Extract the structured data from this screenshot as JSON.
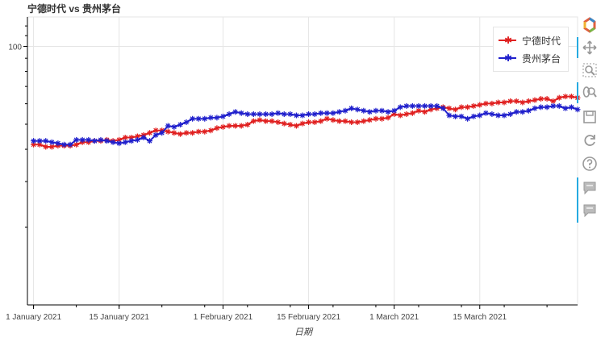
{
  "chart_data": {
    "type": "line",
    "title": "宁德时代 vs 贵州茅台",
    "xlabel": "日期",
    "ylabel": "",
    "y_scale": "log",
    "ylim": [
      10,
      130
    ],
    "xlim": [
      "2020-12-31",
      "2021-03-31"
    ],
    "grid": true,
    "legend_position": "top-right",
    "y_ticks": [
      100
    ],
    "x_ticks": [
      "1 January 2021",
      "15 January 2021",
      "1 February 2021",
      "15 February 2021",
      "1 March 2021",
      "15 March 2021"
    ],
    "x": [
      "2021-01-01",
      "2021-01-02",
      "2021-01-03",
      "2021-01-04",
      "2021-01-05",
      "2021-01-06",
      "2021-01-07",
      "2021-01-08",
      "2021-01-09",
      "2021-01-10",
      "2021-01-11",
      "2021-01-12",
      "2021-01-13",
      "2021-01-14",
      "2021-01-15",
      "2021-01-16",
      "2021-01-17",
      "2021-01-18",
      "2021-01-19",
      "2021-01-20",
      "2021-01-21",
      "2021-01-22",
      "2021-01-23",
      "2021-01-24",
      "2021-01-25",
      "2021-01-26",
      "2021-01-27",
      "2021-01-28",
      "2021-01-29",
      "2021-01-30",
      "2021-01-31",
      "2021-02-01",
      "2021-02-02",
      "2021-02-03",
      "2021-02-04",
      "2021-02-05",
      "2021-02-06",
      "2021-02-07",
      "2021-02-08",
      "2021-02-09",
      "2021-02-10",
      "2021-02-11",
      "2021-02-12",
      "2021-02-13",
      "2021-02-14",
      "2021-02-15",
      "2021-02-16",
      "2021-02-17",
      "2021-02-18",
      "2021-02-19",
      "2021-02-20",
      "2021-02-21",
      "2021-02-22",
      "2021-02-23",
      "2021-02-24",
      "2021-02-25",
      "2021-02-26",
      "2021-02-27",
      "2021-02-28",
      "2021-03-01",
      "2021-03-02",
      "2021-03-03",
      "2021-03-04",
      "2021-03-05",
      "2021-03-06",
      "2021-03-07",
      "2021-03-08",
      "2021-03-09",
      "2021-03-10",
      "2021-03-11",
      "2021-03-12",
      "2021-03-13",
      "2021-03-14",
      "2021-03-15",
      "2021-03-16",
      "2021-03-17",
      "2021-03-18",
      "2021-03-19",
      "2021-03-20",
      "2021-03-21",
      "2021-03-22",
      "2021-03-23",
      "2021-03-24",
      "2021-03-25",
      "2021-03-26",
      "2021-03-27",
      "2021-03-28",
      "2021-03-29",
      "2021-03-30",
      "2021-03-31"
    ],
    "series": [
      {
        "name": "宁德时代",
        "color": "#e02020",
        "values": [
          41.7,
          41.7,
          40.9,
          40.9,
          41.3,
          41.3,
          41.3,
          41.7,
          42.6,
          42.6,
          43.1,
          43.1,
          43.5,
          43.1,
          43.5,
          44.4,
          44.4,
          44.9,
          45.4,
          46.3,
          47.3,
          47.3,
          46.8,
          46.3,
          45.8,
          46.3,
          46.3,
          46.8,
          46.8,
          47.3,
          48.3,
          48.8,
          49.3,
          49.3,
          49.3,
          49.8,
          51.4,
          51.9,
          51.4,
          51.4,
          50.9,
          50.3,
          49.8,
          49.3,
          50.3,
          50.9,
          50.9,
          51.4,
          52.5,
          51.9,
          51.4,
          51.4,
          50.9,
          50.9,
          51.4,
          51.9,
          52.5,
          52.5,
          53.0,
          54.7,
          54.1,
          54.7,
          55.2,
          56.4,
          55.8,
          57.0,
          57.6,
          58.2,
          57.6,
          57.0,
          58.2,
          58.2,
          58.8,
          59.4,
          60.1,
          60.1,
          60.7,
          60.7,
          61.4,
          61.4,
          60.7,
          61.4,
          62.0,
          62.7,
          62.7,
          61.4,
          63.3,
          64.0,
          64.0,
          63.3
        ]
      },
      {
        "name": "贵州茅台",
        "color": "#2020cc",
        "values": [
          43.1,
          43.1,
          43.1,
          42.6,
          42.2,
          41.7,
          41.7,
          43.5,
          43.5,
          43.5,
          43.1,
          43.5,
          43.1,
          42.6,
          42.2,
          42.6,
          43.1,
          43.5,
          44.4,
          43.1,
          45.4,
          46.3,
          49.3,
          48.8,
          49.8,
          50.9,
          52.5,
          52.5,
          52.5,
          53.0,
          53.0,
          53.6,
          54.7,
          55.8,
          55.2,
          54.7,
          54.7,
          54.7,
          54.7,
          54.7,
          55.2,
          54.7,
          54.7,
          54.1,
          54.1,
          54.7,
          54.7,
          55.2,
          55.2,
          55.2,
          55.8,
          56.4,
          57.6,
          57.0,
          56.4,
          55.8,
          56.4,
          56.4,
          55.8,
          56.4,
          58.2,
          58.8,
          58.8,
          58.8,
          58.8,
          58.8,
          58.8,
          57.6,
          54.1,
          53.6,
          53.6,
          52.5,
          53.6,
          54.1,
          55.2,
          54.7,
          54.1,
          54.1,
          54.7,
          55.8,
          55.8,
          56.4,
          57.6,
          58.2,
          58.2,
          58.8,
          58.8,
          57.6,
          58.2,
          57.0
        ]
      }
    ]
  },
  "toolbar": {
    "tools": [
      "bokeh-logo-icon",
      "pan-icon",
      "box-zoom-icon",
      "wheel-zoom-icon",
      "save-icon",
      "reset-icon",
      "help-icon",
      "hover-tooltip-icon-1",
      "hover-tooltip-icon-2"
    ]
  }
}
